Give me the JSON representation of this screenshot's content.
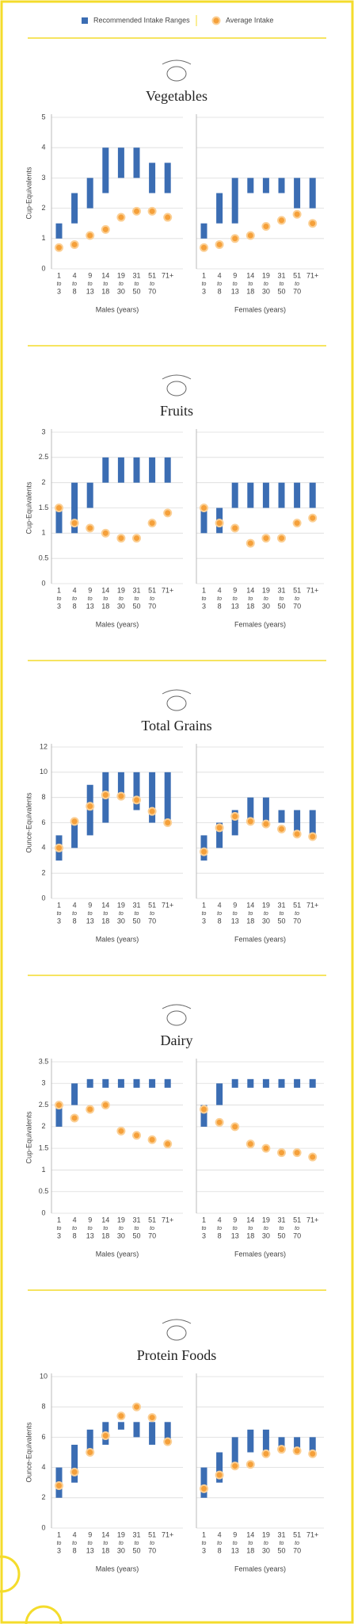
{
  "legend": {
    "ranges": {
      "name": "Recommended Intake Ranges",
      "color": "#3b6db3"
    },
    "average": {
      "name": "Average Intake",
      "color": "#f5a03a"
    }
  },
  "chart_data": [
    {
      "type": "range-dot",
      "title": "Vegetables",
      "y_label": "Cup-Equivalents",
      "ylim": [
        0,
        5
      ],
      "yticks": [
        0,
        1,
        2,
        3,
        4,
        5
      ],
      "grid": true,
      "categories": [
        [
          "1",
          "to",
          "3"
        ],
        [
          "4",
          "to",
          "8"
        ],
        [
          "9",
          "to",
          "13"
        ],
        [
          "14",
          "to",
          "18"
        ],
        [
          "19",
          "to",
          "30"
        ],
        [
          "31",
          "to",
          "50"
        ],
        [
          "51",
          "to",
          "70"
        ],
        [
          "71+"
        ]
      ],
      "subcharts": [
        {
          "x_label": "Males (years)",
          "low": [
            1,
            1.5,
            2,
            2.5,
            3,
            3,
            2.5,
            2.5
          ],
          "high": [
            1.5,
            2.5,
            3,
            4,
            4,
            4,
            3.5,
            3.5
          ],
          "average": [
            0.7,
            0.8,
            1.1,
            1.3,
            1.7,
            1.9,
            1.9,
            1.7
          ]
        },
        {
          "x_label": "Females (years)",
          "low": [
            1,
            1.5,
            1.5,
            2.5,
            2.5,
            2.5,
            2,
            2
          ],
          "high": [
            1.5,
            2.5,
            3,
            3,
            3,
            3,
            3,
            3
          ],
          "average": [
            0.7,
            0.8,
            1.0,
            1.1,
            1.4,
            1.6,
            1.8,
            1.5
          ]
        }
      ]
    },
    {
      "type": "range-dot",
      "title": "Fruits",
      "y_label": "Cup-Equivalents",
      "ylim": [
        0,
        3
      ],
      "yticks": [
        0,
        0.5,
        1,
        1.5,
        2,
        2.5,
        3
      ],
      "grid": true,
      "categories": [
        [
          "1",
          "to",
          "3"
        ],
        [
          "4",
          "to",
          "8"
        ],
        [
          "9",
          "to",
          "13"
        ],
        [
          "14",
          "to",
          "18"
        ],
        [
          "19",
          "to",
          "30"
        ],
        [
          "31",
          "to",
          "50"
        ],
        [
          "51",
          "to",
          "70"
        ],
        [
          "71+"
        ]
      ],
      "subcharts": [
        {
          "x_label": "Males (years)",
          "low": [
            1,
            1,
            1.5,
            2,
            2,
            2,
            2,
            2
          ],
          "high": [
            1.5,
            2,
            2,
            2.5,
            2.5,
            2.5,
            2.5,
            2.5
          ],
          "average": [
            1.5,
            1.2,
            1.1,
            1.0,
            0.9,
            0.9,
            1.2,
            1.4
          ]
        },
        {
          "x_label": "Females (years)",
          "low": [
            1,
            1,
            1.5,
            1.5,
            1.5,
            1.5,
            1.5,
            1.5
          ],
          "high": [
            1.5,
            1.5,
            2,
            2,
            2,
            2,
            2,
            2
          ],
          "average": [
            1.5,
            1.2,
            1.1,
            0.8,
            0.9,
            0.9,
            1.2,
            1.3
          ]
        }
      ]
    },
    {
      "type": "range-dot",
      "title": "Total Grains",
      "y_label": "Ounce-Equivalents",
      "ylim": [
        0,
        12
      ],
      "yticks": [
        0,
        2,
        4,
        6,
        8,
        10,
        12
      ],
      "grid": true,
      "categories": [
        [
          "1",
          "to",
          "3"
        ],
        [
          "4",
          "to",
          "8"
        ],
        [
          "9",
          "to",
          "13"
        ],
        [
          "14",
          "to",
          "18"
        ],
        [
          "19",
          "to",
          "30"
        ],
        [
          "31",
          "to",
          "50"
        ],
        [
          "51",
          "to",
          "70"
        ],
        [
          "71+"
        ]
      ],
      "subcharts": [
        {
          "x_label": "Males (years)",
          "low": [
            3,
            4,
            5,
            6,
            8,
            7,
            6,
            6
          ],
          "high": [
            5,
            6,
            9,
            10,
            10,
            10,
            10,
            10
          ],
          "average": [
            4.0,
            6.1,
            7.3,
            8.2,
            8.1,
            7.8,
            6.9,
            6.0
          ]
        },
        {
          "x_label": "Females (years)",
          "low": [
            3,
            4,
            5,
            6,
            6,
            6,
            5,
            5
          ],
          "high": [
            5,
            6,
            7,
            8,
            8,
            7,
            7,
            7
          ],
          "average": [
            3.7,
            5.6,
            6.5,
            6.1,
            5.9,
            5.5,
            5.1,
            4.9
          ]
        }
      ]
    },
    {
      "type": "range-dot",
      "title": "Dairy",
      "y_label": "Cup-Equivalents",
      "ylim": [
        0,
        3.5
      ],
      "yticks": [
        0,
        0.5,
        1,
        1.5,
        2,
        2.5,
        3,
        3.5
      ],
      "grid": true,
      "categories": [
        [
          "1",
          "to",
          "3"
        ],
        [
          "4",
          "to",
          "8"
        ],
        [
          "9",
          "to",
          "13"
        ],
        [
          "14",
          "to",
          "18"
        ],
        [
          "19",
          "to",
          "30"
        ],
        [
          "31",
          "to",
          "50"
        ],
        [
          "51",
          "to",
          "70"
        ],
        [
          "71+"
        ]
      ],
      "subcharts": [
        {
          "x_label": "Males (years)",
          "low": [
            2,
            2.5,
            2.9,
            2.9,
            2.9,
            2.9,
            2.9,
            2.9
          ],
          "high": [
            2.5,
            3,
            3.1,
            3.1,
            3.1,
            3.1,
            3.1,
            3.1
          ],
          "average": [
            2.5,
            2.2,
            2.4,
            2.5,
            1.9,
            1.8,
            1.7,
            1.6
          ]
        },
        {
          "x_label": "Females (years)",
          "low": [
            2,
            2.5,
            2.9,
            2.9,
            2.9,
            2.9,
            2.9,
            2.9
          ],
          "high": [
            2.5,
            3,
            3.1,
            3.1,
            3.1,
            3.1,
            3.1,
            3.1
          ],
          "average": [
            2.4,
            2.1,
            2.0,
            1.6,
            1.5,
            1.4,
            1.4,
            1.3
          ]
        }
      ]
    },
    {
      "type": "range-dot",
      "title": "Protein Foods",
      "y_label": "Ounce-Equivalents",
      "ylim": [
        0,
        10
      ],
      "yticks": [
        0,
        2,
        4,
        6,
        8,
        10
      ],
      "grid": true,
      "categories": [
        [
          "1",
          "to",
          "3"
        ],
        [
          "4",
          "to",
          "8"
        ],
        [
          "9",
          "to",
          "13"
        ],
        [
          "14",
          "to",
          "18"
        ],
        [
          "19",
          "to",
          "30"
        ],
        [
          "31",
          "to",
          "50"
        ],
        [
          "51",
          "to",
          "70"
        ],
        [
          "71+"
        ]
      ],
      "subcharts": [
        {
          "x_label": "Males (years)",
          "low": [
            2,
            3,
            5,
            5.5,
            6.5,
            6,
            5.5,
            5.5
          ],
          "high": [
            4,
            5.5,
            6.5,
            7,
            7,
            7,
            7,
            7
          ],
          "average": [
            2.8,
            3.7,
            5.0,
            6.1,
            7.4,
            8.0,
            7.3,
            5.7
          ]
        },
        {
          "x_label": "Females (years)",
          "low": [
            2,
            3,
            4,
            5,
            5,
            5,
            5,
            5
          ],
          "high": [
            4,
            5,
            6,
            6.5,
            6.5,
            6,
            6,
            6
          ],
          "average": [
            2.6,
            3.5,
            4.1,
            4.2,
            4.9,
            5.2,
            5.1,
            4.9
          ]
        }
      ]
    }
  ]
}
